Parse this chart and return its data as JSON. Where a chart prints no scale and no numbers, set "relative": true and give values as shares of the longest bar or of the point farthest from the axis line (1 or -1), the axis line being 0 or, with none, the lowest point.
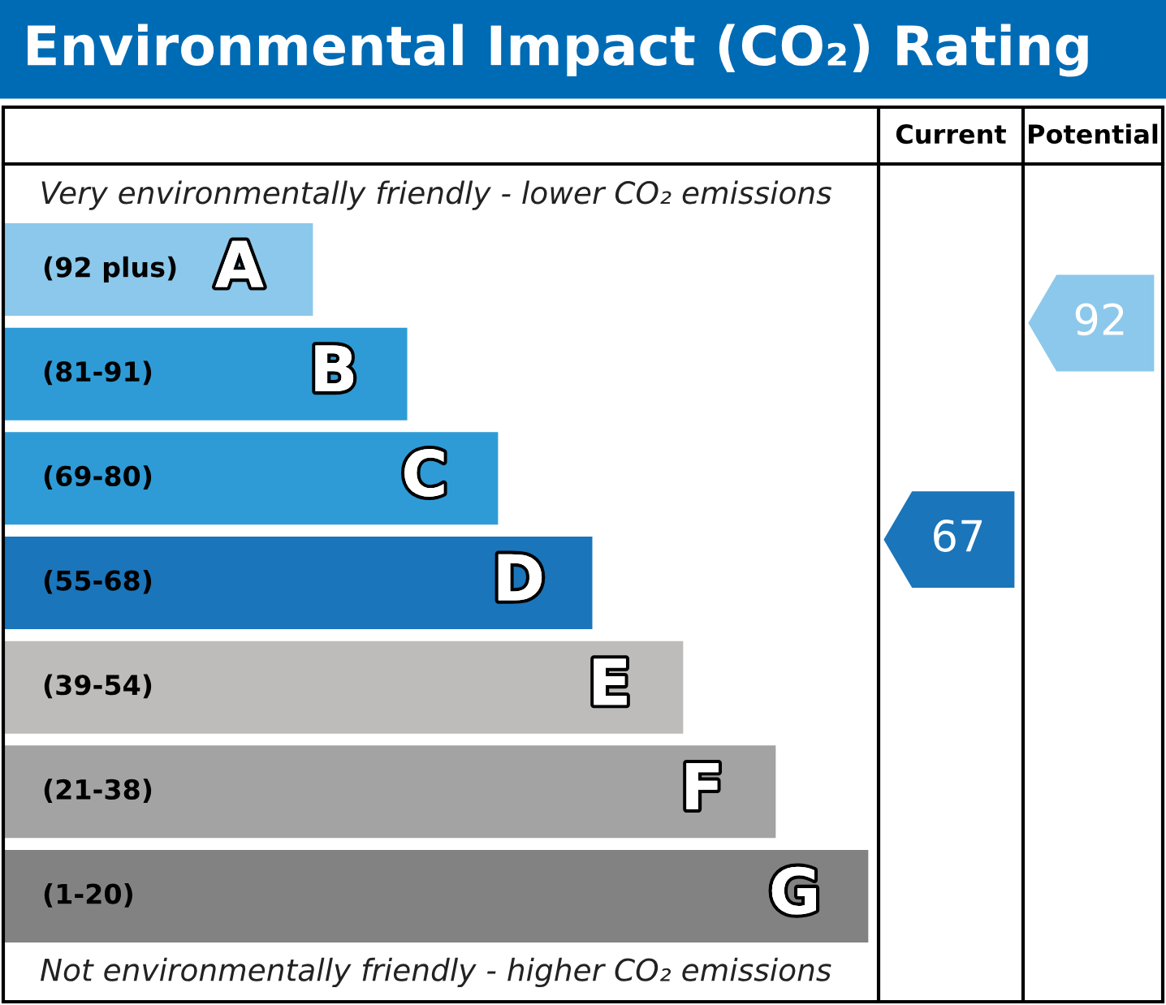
{
  "chart_data": [
    {
      "type": "bar",
      "orientation": "horizontal",
      "relative": true,
      "title": "Environmental Impact (CO₂) Rating",
      "categories": [
        "(92 plus)",
        "(81-91)",
        "(69-80)",
        "(55-68)",
        "(39-54)",
        "(21-38)",
        "(1-20)"
      ],
      "values": [
        0.358,
        0.467,
        0.572,
        0.681,
        0.786,
        0.893,
        1.0
      ],
      "colors": [
        "#8cc8eb",
        "#2e9bd6",
        "#2e9bd6",
        "#1a75bb",
        "#bdbcba",
        "#a3a3a3",
        "#828282"
      ],
      "annotations": [
        "Very environmentally friendly - lower CO₂ emissions",
        "Not environmentally friendly - higher CO₂ emissions",
        {
          "text": "A",
          "x": 0.358,
          "y": "(92 plus)"
        },
        {
          "text": "B",
          "x": 0.467,
          "y": "(81-91)"
        },
        {
          "text": "C",
          "x": 0.572,
          "y": "(69-80)"
        },
        {
          "text": "D",
          "x": 0.681,
          "y": "(55-68)"
        },
        {
          "text": "E",
          "x": 0.786,
          "y": "(39-54)"
        },
        {
          "text": "F",
          "x": 0.893,
          "y": "(21-38)"
        },
        {
          "text": "G",
          "x": 1.0,
          "y": "(1-20)"
        }
      ]
    },
    {
      "type": "other",
      "categories": [
        "Current",
        "Potential"
      ],
      "values": [
        67,
        92
      ],
      "colors": [
        "#1a75bb",
        "#8cc8eb"
      ],
      "data_labels": true
    }
  ]
}
